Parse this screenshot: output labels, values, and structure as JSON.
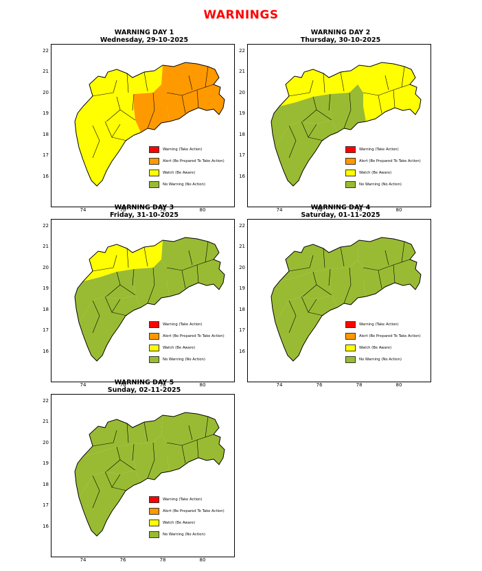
{
  "header": {
    "title": "WARNINGS"
  },
  "axes": {
    "x_ticks": [
      "74",
      "76",
      "78",
      "80"
    ],
    "y_ticks": [
      "22",
      "21",
      "20",
      "19",
      "18",
      "17",
      "16"
    ]
  },
  "legend": [
    {
      "label": "Warning (Take Action)",
      "color": "#ff0000"
    },
    {
      "label": "Alert (Be Prepared To Take Action)",
      "color": "#ff9900"
    },
    {
      "label": "Watch (Be Aware)",
      "color": "#ffff00"
    },
    {
      "label": "No Warning (No Action)",
      "color": "#99bb33"
    }
  ],
  "days": [
    {
      "title": "WARNING DAY 1",
      "date": "Wednesday, 29-10-2025",
      "regions": {
        "north": "watch",
        "east": "alert",
        "center": "alert",
        "west": "watch",
        "south": "watch"
      }
    },
    {
      "title": "WARNING DAY 2",
      "date": "Thursday, 30-10-2025",
      "regions": {
        "north": "watch",
        "east": "watch",
        "center": "none",
        "west": "none",
        "south": "none"
      }
    },
    {
      "title": "WARNING DAY 3",
      "date": "Friday, 31-10-2025",
      "regions": {
        "north": "watch",
        "east": "none",
        "center": "none",
        "west": "none",
        "south": "none"
      }
    },
    {
      "title": "WARNING DAY 4",
      "date": "Saturday, 01-11-2025",
      "regions": {
        "north": "none",
        "east": "none",
        "center": "none",
        "west": "none",
        "south": "none"
      }
    },
    {
      "title": "WARNING DAY 5",
      "date": "Sunday, 02-11-2025",
      "regions": {
        "north": "none",
        "east": "none",
        "center": "none",
        "west": "none",
        "south": "none"
      }
    }
  ],
  "level_colors": {
    "watch": "#ffff00",
    "alert": "#ff9900",
    "warning": "#ff0000",
    "none": "#99bb33"
  }
}
